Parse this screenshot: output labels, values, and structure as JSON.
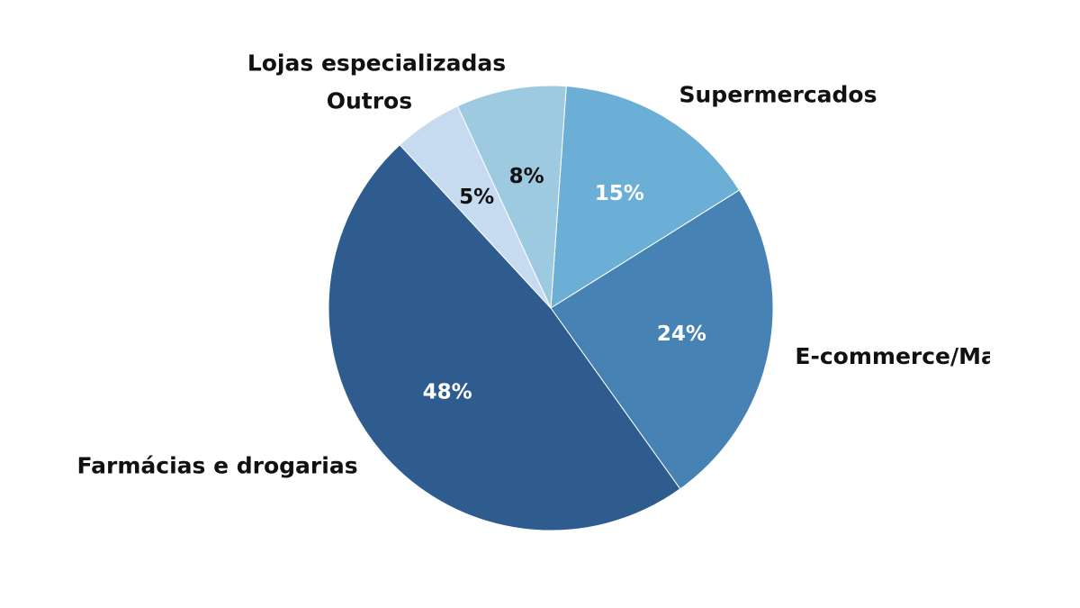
{
  "chart_data": {
    "type": "pie",
    "categories": [
      "Supermercados",
      "E-commerce/Marketplaces",
      "Farmácias e drogarias",
      "Outros",
      "Lojas especializadas"
    ],
    "values": [
      15,
      24,
      48,
      5,
      8
    ],
    "value_labels": [
      "15%",
      "24%",
      "48%",
      "5%",
      "8%"
    ],
    "start_angle_deg": 86,
    "direction": "clockwise",
    "colors": [
      "#6baed6",
      "#4682b4",
      "#2e5c8e",
      "#c6dbef",
      "#9ecae1"
    ],
    "value_label_colors": [
      "#ffffff",
      "#ffffff",
      "#ffffff",
      "#111111",
      "#111111"
    ],
    "title": "",
    "legend": "none"
  }
}
